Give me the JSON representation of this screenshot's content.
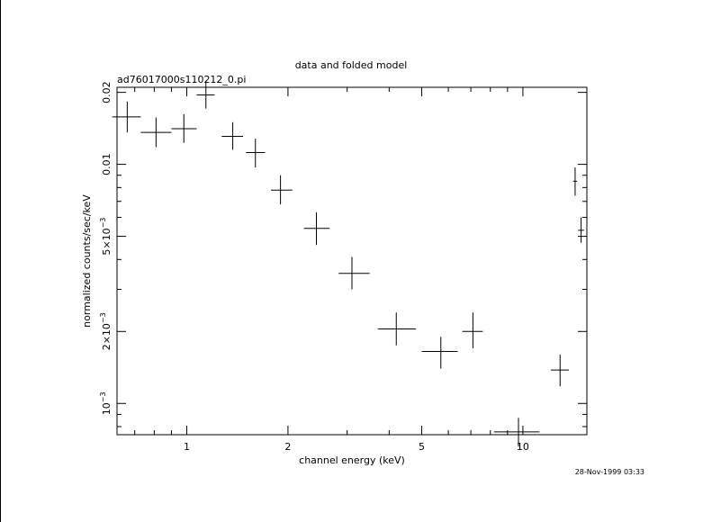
{
  "chart_data": {
    "type": "scatter",
    "title": "data and folded model",
    "subtitle": "ad76017000s110212_0.pi",
    "xlabel": "channel energy (keV)",
    "ylabel": "normalized counts/sec/keV",
    "timestamp": "28-Nov-1999 03:33",
    "x_scale": "log",
    "y_scale": "log",
    "xlim": [
      0.62,
      15.5
    ],
    "ylim": [
      0.00074,
      0.021
    ],
    "x_ticks": [
      {
        "value": 1,
        "label": "1"
      },
      {
        "value": 2,
        "label": "2"
      },
      {
        "value": 5,
        "label": "5"
      },
      {
        "value": 10,
        "label": "10"
      }
    ],
    "y_ticks": [
      {
        "value": 0.001,
        "base": "10",
        "exp": "−3"
      },
      {
        "value": 0.002,
        "base": "2×10",
        "exp": "−3"
      },
      {
        "value": 0.005,
        "base": "5×10",
        "exp": "−3"
      },
      {
        "value": 0.01,
        "label": "0.01"
      },
      {
        "value": 0.02,
        "label": "0.02"
      }
    ],
    "grid": false,
    "points": [
      {
        "x": 0.665,
        "xlo": 0.6,
        "xhi": 0.73,
        "y": 0.0158,
        "ylo": 0.0136,
        "yhi": 0.0183
      },
      {
        "x": 0.81,
        "xlo": 0.73,
        "xhi": 0.9,
        "y": 0.0136,
        "ylo": 0.0118,
        "yhi": 0.0157
      },
      {
        "x": 0.98,
        "xlo": 0.9,
        "xhi": 1.07,
        "y": 0.0141,
        "ylo": 0.0123,
        "yhi": 0.0162
      },
      {
        "x": 1.14,
        "xlo": 1.07,
        "xhi": 1.21,
        "y": 0.0195,
        "ylo": 0.0171,
        "yhi": 0.0222
      },
      {
        "x": 1.37,
        "xlo": 1.27,
        "xhi": 1.47,
        "y": 0.0131,
        "ylo": 0.0115,
        "yhi": 0.015
      },
      {
        "x": 1.6,
        "xlo": 1.5,
        "xhi": 1.71,
        "y": 0.0112,
        "ylo": 0.0097,
        "yhi": 0.0128
      },
      {
        "x": 1.9,
        "xlo": 1.78,
        "xhi": 2.06,
        "y": 0.0078,
        "ylo": 0.0068,
        "yhi": 0.009
      },
      {
        "x": 2.43,
        "xlo": 2.23,
        "xhi": 2.66,
        "y": 0.0054,
        "ylo": 0.0046,
        "yhi": 0.0063
      },
      {
        "x": 3.1,
        "xlo": 2.83,
        "xhi": 3.5,
        "y": 0.0035,
        "ylo": 0.003,
        "yhi": 0.0041
      },
      {
        "x": 4.2,
        "xlo": 3.7,
        "xhi": 4.8,
        "y": 0.00205,
        "ylo": 0.00175,
        "yhi": 0.0024
      },
      {
        "x": 5.7,
        "xlo": 5.0,
        "xhi": 6.4,
        "y": 0.00165,
        "ylo": 0.0014,
        "yhi": 0.0019
      },
      {
        "x": 7.1,
        "xlo": 6.6,
        "xhi": 7.6,
        "y": 0.002,
        "ylo": 0.0017,
        "yhi": 0.0024
      },
      {
        "x": 9.7,
        "xlo": 8.2,
        "xhi": 11.2,
        "y": 0.00076,
        "ylo": 0.00066,
        "yhi": 0.00087
      },
      {
        "x": 12.9,
        "xlo": 12.1,
        "xhi": 13.7,
        "y": 0.00138,
        "ylo": 0.00118,
        "yhi": 0.0016
      },
      {
        "x": 14.3,
        "xlo": 14.1,
        "xhi": 14.5,
        "y": 0.0085,
        "ylo": 0.0074,
        "yhi": 0.0097
      },
      {
        "x": 14.9,
        "xlo": 14.6,
        "xhi": 15.2,
        "y": 0.0053,
        "ylo": 0.0047,
        "yhi": 0.006
      }
    ]
  }
}
